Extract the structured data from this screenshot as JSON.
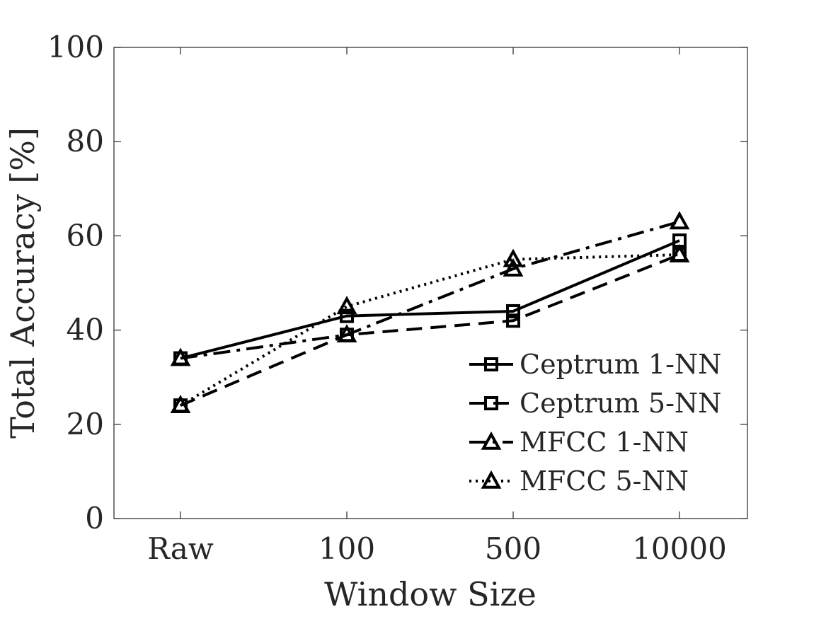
{
  "chart_data": {
    "type": "line",
    "xlabel": "Window Size",
    "ylabel": "Total Accuracy [%]",
    "categories": [
      "Raw",
      "100",
      "500",
      "10000"
    ],
    "ylim": [
      0,
      100
    ],
    "yticks": [
      "0",
      "20",
      "40",
      "60",
      "80",
      "100"
    ],
    "grid": false,
    "legend_position": "bottom-right",
    "line_color": "#000000",
    "series": [
      {
        "name": "Ceptrum 1-NN",
        "marker": "square",
        "dash": "solid",
        "values": [
          34,
          43,
          44,
          59
        ]
      },
      {
        "name": "Ceptrum 5-NN",
        "marker": "square",
        "dash": "dashed",
        "values": [
          24,
          39,
          42,
          56
        ]
      },
      {
        "name": "MFCC 1-NN",
        "marker": "triangle",
        "dash": "dashdot",
        "values": [
          34,
          39,
          53,
          63
        ]
      },
      {
        "name": "MFCC 5-NN",
        "marker": "triangle",
        "dash": "dotted",
        "values": [
          24,
          45,
          55,
          56
        ]
      }
    ]
  }
}
